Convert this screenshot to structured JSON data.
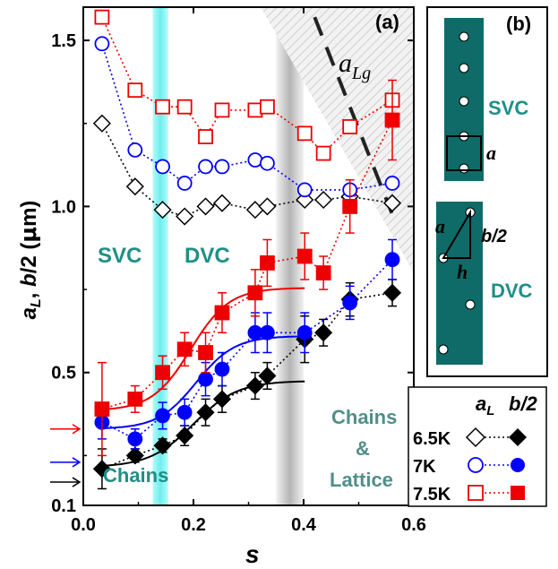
{
  "chart_data": {
    "type": "scatter",
    "panel_a": {
      "label": "(a)",
      "xlabel": "s",
      "ylabel_parts": [
        "a",
        "L",
        ", ",
        "b",
        "/2 (",
        "μ",
        "m)"
      ],
      "x_ticks": [
        "0.0",
        "0.2",
        "0.4",
        "0.6"
      ],
      "x_tick_values": [
        0.0,
        0.2,
        0.4,
        0.6
      ],
      "y_ticks": [
        "0.1",
        "0.5",
        "1.0",
        "1.5"
      ],
      "y_tick_values": [
        0.1,
        0.5,
        1.0,
        1.5
      ],
      "xlim": [
        0.0,
        0.6
      ],
      "ylim": [
        0.1,
        1.6
      ],
      "region_labels": {
        "svc": "SVC",
        "dvc": "DVC",
        "chains": "Chains",
        "chains_lattice": [
          "Chains",
          "&",
          "Lattice"
        ]
      },
      "alg_label": [
        "a",
        "Lg"
      ],
      "bands": [
        {
          "x_center": 0.14,
          "half_width": 0.014,
          "color": "#7df0f0"
        },
        {
          "x_center": 0.375,
          "half_width": 0.025,
          "color": "#bdbdbd"
        }
      ],
      "series": [
        {
          "name": "6.5K",
          "quantity": "aL",
          "color": "#000000",
          "marker": "diamond-open",
          "x": [
            0.034,
            0.094,
            0.144,
            0.184,
            0.222,
            0.252,
            0.312,
            0.334,
            0.402,
            0.436,
            0.484,
            0.561
          ],
          "y": [
            1.25,
            1.06,
            0.99,
            0.97,
            1.0,
            1.01,
            0.99,
            1.0,
            1.02,
            1.02,
            1.03,
            1.01
          ]
        },
        {
          "name": "6.5K",
          "quantity": "b/2",
          "color": "#000000",
          "marker": "diamond-filled",
          "x": [
            0.034,
            0.094,
            0.144,
            0.184,
            0.222,
            0.252,
            0.312,
            0.334,
            0.402,
            0.436,
            0.484,
            0.561
          ],
          "y": [
            0.21,
            0.25,
            0.28,
            0.31,
            0.38,
            0.42,
            0.46,
            0.49,
            0.6,
            0.62,
            0.72,
            0.74
          ],
          "err": [
            0.06,
            0.02,
            0.02,
            0.03,
            0.04,
            0.04,
            0.04,
            0.04,
            0.07,
            0.04,
            0.05,
            0.04
          ]
        },
        {
          "name": "7K",
          "quantity": "aL",
          "color": "#0000ff",
          "marker": "circle-open",
          "x": [
            0.034,
            0.094,
            0.144,
            0.184,
            0.222,
            0.252,
            0.312,
            0.334,
            0.402,
            0.484,
            0.561
          ],
          "y": [
            1.49,
            1.17,
            1.12,
            1.07,
            1.12,
            1.12,
            1.14,
            1.13,
            1.05,
            1.05,
            1.07
          ]
        },
        {
          "name": "7K",
          "quantity": "b/2",
          "color": "#0000ff",
          "marker": "circle-filled",
          "x": [
            0.034,
            0.094,
            0.144,
            0.184,
            0.222,
            0.252,
            0.312,
            0.334,
            0.402,
            0.484,
            0.561
          ],
          "y": [
            0.35,
            0.3,
            0.37,
            0.38,
            0.48,
            0.51,
            0.62,
            0.62,
            0.62,
            0.71,
            0.84
          ],
          "err": [
            0.05,
            0.03,
            0.04,
            0.04,
            0.05,
            0.05,
            0.06,
            0.06,
            0.06,
            0.05,
            0.06
          ]
        },
        {
          "name": "7.5K",
          "quantity": "aL",
          "color": "#ee0000",
          "marker": "square-open",
          "x": [
            0.034,
            0.094,
            0.144,
            0.184,
            0.222,
            0.252,
            0.312,
            0.334,
            0.402,
            0.436,
            0.484,
            0.561
          ],
          "y": [
            1.57,
            1.35,
            1.3,
            1.3,
            1.21,
            1.29,
            1.29,
            1.3,
            1.22,
            1.16,
            1.24,
            1.32
          ]
        },
        {
          "name": "7.5K",
          "quantity": "b/2",
          "color": "#ee0000",
          "marker": "square-filled",
          "x": [
            0.034,
            0.094,
            0.144,
            0.184,
            0.222,
            0.252,
            0.312,
            0.334,
            0.402,
            0.436,
            0.484,
            0.561
          ],
          "y": [
            0.39,
            0.42,
            0.5,
            0.57,
            0.56,
            0.68,
            0.74,
            0.83,
            0.85,
            0.8,
            1.0,
            1.26
          ],
          "err": [
            0.14,
            0.04,
            0.05,
            0.05,
            0.06,
            0.06,
            0.07,
            0.07,
            0.07,
            0.05,
            0.08,
            0.12
          ]
        }
      ],
      "fits": [
        {
          "color": "#ee0000",
          "x_start": 0.034,
          "x_end": 0.402,
          "low": 0.385,
          "high": 0.755,
          "x0": 0.195,
          "w": 0.035
        },
        {
          "color": "#0000ff",
          "x_start": 0.034,
          "x_end": 0.402,
          "low": 0.33,
          "high": 0.61,
          "x0": 0.205,
          "w": 0.035
        },
        {
          "color": "#000000",
          "x_start": 0.034,
          "x_end": 0.402,
          "low": 0.215,
          "high": 0.475,
          "x0": 0.2,
          "w": 0.04
        }
      ],
      "alg_line": [
        [
          0.42,
          1.57
        ],
        [
          0.56,
          0.98
        ]
      ],
      "alg_shade": [
        [
          0.322,
          1.6
        ],
        [
          0.6,
          1.6
        ],
        [
          0.6,
          0.8
        ]
      ],
      "arrows_y": [
        0.33,
        0.23,
        0.17
      ],
      "arrow_colors": [
        "#ee0000",
        "#0000ff",
        "#000000"
      ]
    },
    "panel_b": {
      "label": "(b)",
      "svc": "SVC",
      "dvc": "DVC",
      "a": "a",
      "b2": "b/2",
      "h": "h",
      "strip_color": "#0f6b68"
    },
    "legend": {
      "header_aL": [
        "a",
        "L"
      ],
      "header_b2": "b/2",
      "rows": [
        "6.5K",
        "7K",
        "7.5K"
      ]
    }
  }
}
